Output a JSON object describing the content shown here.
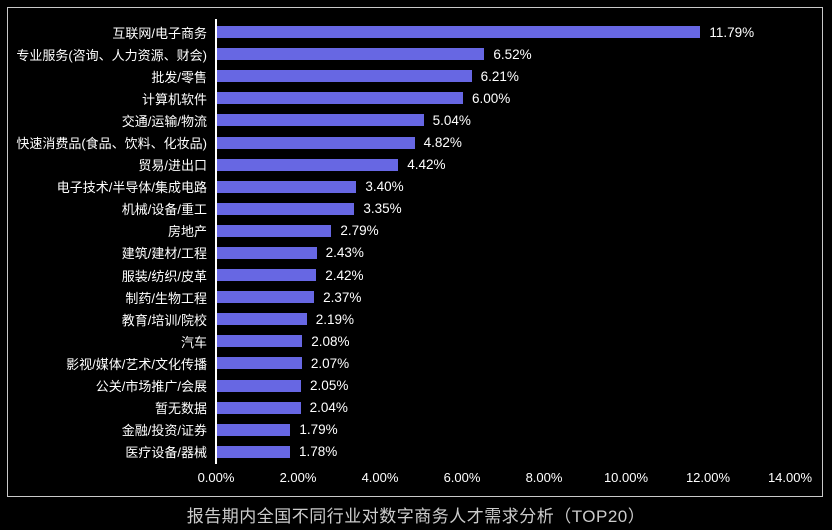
{
  "chart_data": {
    "type": "bar",
    "orientation": "horizontal",
    "title": "报告期内全国不同行业对数字商务人才需求分析（TOP20）",
    "categories": [
      "互联网/电子商务",
      "专业服务(咨询、人力资源、财会)",
      "批发/零售",
      "计算机软件",
      "交通/运输/物流",
      "快速消费品(食品、饮料、化妆品)",
      "贸易/进出口",
      "电子技术/半导体/集成电路",
      "机械/设备/重工",
      "房地产",
      "建筑/建材/工程",
      "服装/纺织/皮革",
      "制药/生物工程",
      "教育/培训/院校",
      "汽车",
      "影视/媒体/艺术/文化传播",
      "公关/市场推广/会展",
      "暂无数据",
      "金融/投资/证券",
      "医疗设备/器械"
    ],
    "values": [
      11.79,
      6.52,
      6.21,
      6.0,
      5.04,
      4.82,
      4.42,
      3.4,
      3.35,
      2.79,
      2.43,
      2.42,
      2.37,
      2.19,
      2.08,
      2.07,
      2.05,
      2.04,
      1.79,
      1.78
    ],
    "value_labels": [
      "11.79%",
      "6.52%",
      "6.21%",
      "6.00%",
      "5.04%",
      "4.82%",
      "4.42%",
      "3.40%",
      "3.35%",
      "2.79%",
      "2.43%",
      "2.42%",
      "2.37%",
      "2.19%",
      "2.08%",
      "2.07%",
      "2.05%",
      "2.04%",
      "1.79%",
      "1.78%"
    ],
    "x_ticks": [
      "0.00%",
      "2.00%",
      "4.00%",
      "6.00%",
      "8.00%",
      "10.00%",
      "12.00%",
      "14.00%"
    ],
    "xlim": [
      0,
      14
    ],
    "grid": false,
    "legend": "none",
    "bar_color": "#6767e3",
    "background_color": "#000000",
    "axis_color": "#ffffff",
    "frame_border_color": "#c9c9c9",
    "label_color": "#ffffff",
    "title_color": "#cccccc"
  }
}
